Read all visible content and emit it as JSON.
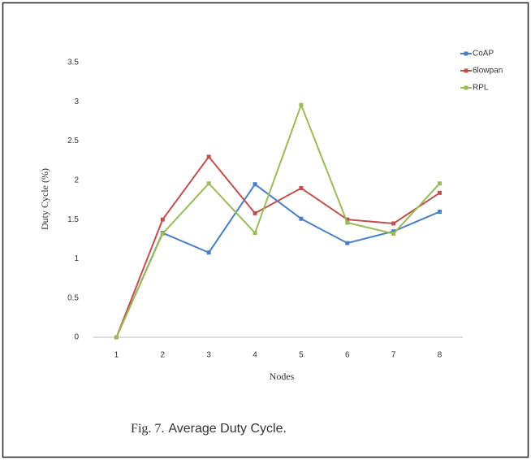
{
  "chart_data": {
    "type": "line",
    "x_label": "Nodes",
    "y_label": "Duty Cycle  (%)",
    "categories": [
      "1",
      "2",
      "3",
      "4",
      "5",
      "6",
      "7",
      "8"
    ],
    "series": [
      {
        "name": "CoAP",
        "color": "#4a7fc1",
        "values": [
          0,
          1.33,
          1.08,
          1.95,
          1.51,
          1.2,
          1.35,
          1.6
        ]
      },
      {
        "name": "6lowpan",
        "color": "#c0504d",
        "values": [
          0,
          1.5,
          2.3,
          1.58,
          1.9,
          1.5,
          1.45,
          1.84
        ]
      },
      {
        "name": "RPL",
        "color": "#9bbb59",
        "values": [
          0,
          1.32,
          1.96,
          1.33,
          2.96,
          1.46,
          1.32,
          1.96
        ]
      }
    ],
    "ylim": [
      0,
      3.5
    ],
    "yticks": [
      0,
      0.5,
      1,
      1.5,
      2,
      2.5,
      3,
      3.5
    ],
    "grid": false,
    "legend": "top-right"
  },
  "caption": {
    "label": "Fig. 7.",
    "text": "Average Duty Cycle."
  }
}
